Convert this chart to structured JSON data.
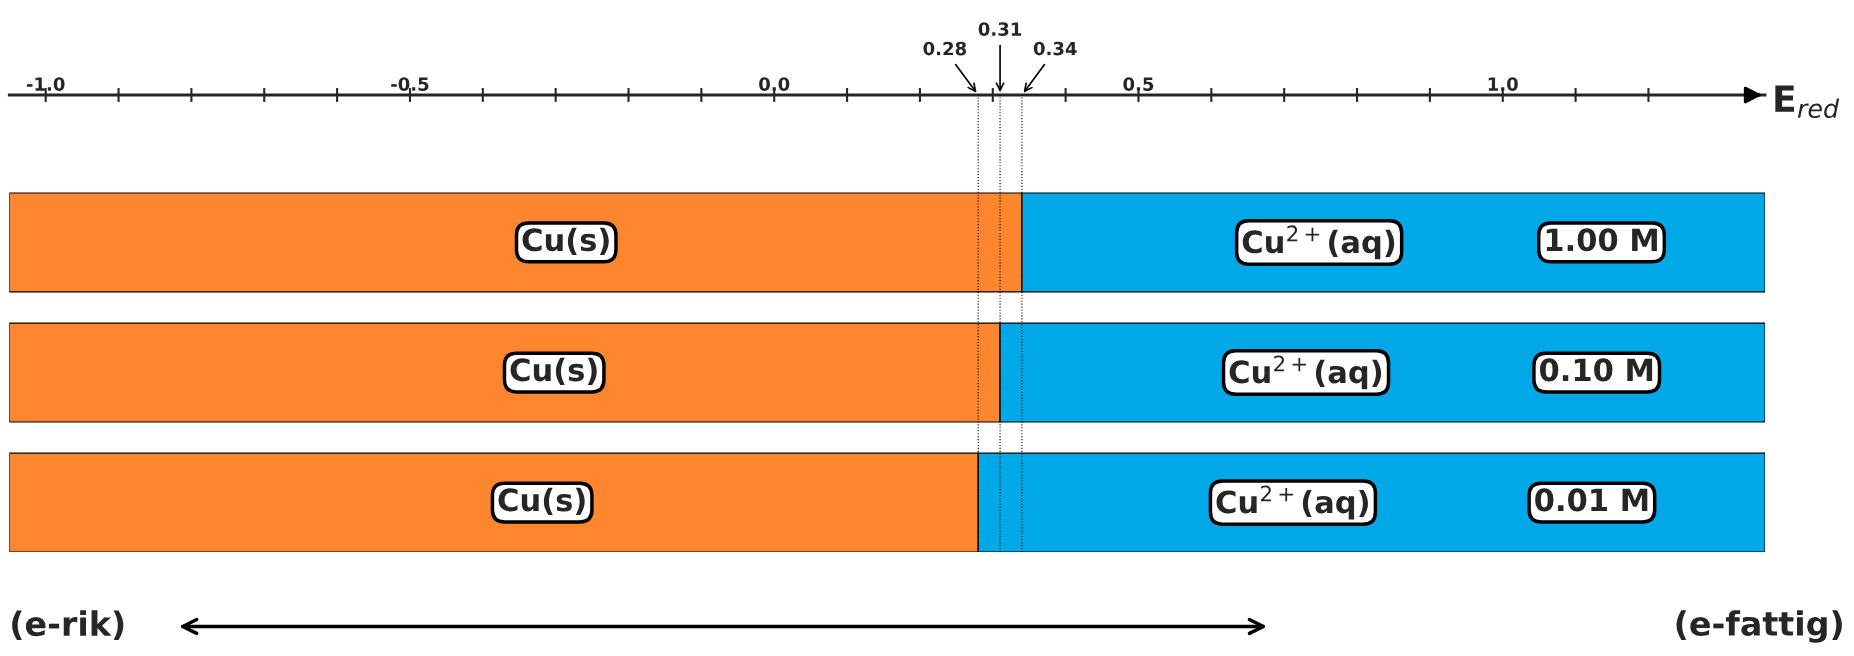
{
  "chart_data": {
    "type": "bar",
    "orientation": "horizontal",
    "xlabel": "E$_{red}$",
    "categories": [
      "1.00 M",
      "0.10 M",
      "0.01 M"
    ],
    "series": [
      {
        "name": "Cu(s)",
        "color": "#fd862f",
        "base": [
          -1.05,
          -1.05,
          -1.05
        ],
        "values": [
          1.39,
          1.36,
          1.33
        ]
      },
      {
        "name": "Cu$^{2+}$(aq)",
        "color": "#00a8e8",
        "base": [
          0.34,
          0.31,
          0.28
        ],
        "values": [
          1.02,
          1.05,
          1.08
        ]
      }
    ],
    "xlim": [
      -1.05,
      1.36
    ],
    "xticks": [
      {
        "value": -1.0,
        "label": "-1.0"
      },
      {
        "value": -0.9,
        "label": null
      },
      {
        "value": -0.8,
        "label": null
      },
      {
        "value": -0.7,
        "label": null
      },
      {
        "value": -0.6,
        "label": null
      },
      {
        "value": -0.5,
        "label": "-0.5"
      },
      {
        "value": -0.4,
        "label": null
      },
      {
        "value": -0.3,
        "label": null
      },
      {
        "value": -0.2,
        "label": null
      },
      {
        "value": -0.1,
        "label": null
      },
      {
        "value": 0.0,
        "label": "0.0"
      },
      {
        "value": 0.1,
        "label": null
      },
      {
        "value": 0.2,
        "label": null
      },
      {
        "value": 0.3,
        "label": null
      },
      {
        "value": 0.4,
        "label": null
      },
      {
        "value": 0.5,
        "label": "0.5"
      },
      {
        "value": 0.6,
        "label": null
      },
      {
        "value": 0.7,
        "label": null
      },
      {
        "value": 0.8,
        "label": null
      },
      {
        "value": 0.9,
        "label": null
      },
      {
        "value": 1.0,
        "label": "1.0"
      },
      {
        "value": 1.1,
        "label": null
      },
      {
        "value": 1.2,
        "label": null
      }
    ],
    "ref_lines": [
      {
        "axis": "x",
        "value": 0.28,
        "label": "0.28",
        "line_style": "dotted"
      },
      {
        "axis": "x",
        "value": 0.31,
        "label": "0.31",
        "line_style": "dotted"
      },
      {
        "axis": "x",
        "value": 0.34,
        "label": "0.34",
        "line_style": "dotted"
      }
    ],
    "annotations": [
      "(e-rik)",
      "(e-fattig)"
    ],
    "grid": false,
    "legend": false
  }
}
